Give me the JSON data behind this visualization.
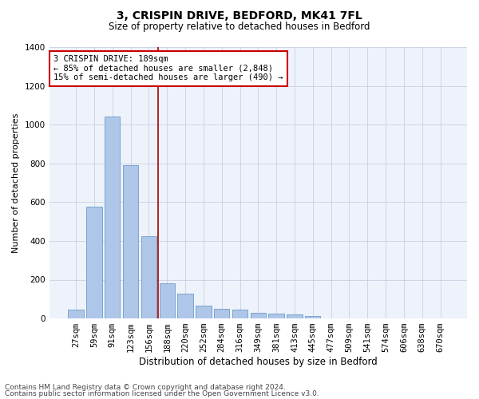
{
  "title1": "3, CRISPIN DRIVE, BEDFORD, MK41 7FL",
  "title2": "Size of property relative to detached houses in Bedford",
  "xlabel": "Distribution of detached houses by size in Bedford",
  "ylabel": "Number of detached properties",
  "categories": [
    "27sqm",
    "59sqm",
    "91sqm",
    "123sqm",
    "156sqm",
    "188sqm",
    "220sqm",
    "252sqm",
    "284sqm",
    "316sqm",
    "349sqm",
    "381sqm",
    "413sqm",
    "445sqm",
    "477sqm",
    "509sqm",
    "541sqm",
    "574sqm",
    "606sqm",
    "638sqm",
    "670sqm"
  ],
  "values": [
    45,
    575,
    1040,
    790,
    425,
    180,
    130,
    65,
    50,
    45,
    30,
    27,
    20,
    13,
    0,
    0,
    0,
    0,
    0,
    0,
    0
  ],
  "bar_color": "#aec6e8",
  "bar_edge_color": "#5a8fc0",
  "highlight_bar_idx": 5,
  "highlight_line_color": "#aa0000",
  "annotation_text": "3 CRISPIN DRIVE: 189sqm\n← 85% of detached houses are smaller (2,848)\n15% of semi-detached houses are larger (490) →",
  "annotation_box_color": "#cc0000",
  "ylim": [
    0,
    1400
  ],
  "yticks": [
    0,
    200,
    400,
    600,
    800,
    1000,
    1200,
    1400
  ],
  "grid_color": "#c8d0e0",
  "background_color": "#eef2fb",
  "footer1": "Contains HM Land Registry data © Crown copyright and database right 2024.",
  "footer2": "Contains public sector information licensed under the Open Government Licence v3.0.",
  "title1_fontsize": 10,
  "title2_fontsize": 8.5,
  "xlabel_fontsize": 8.5,
  "ylabel_fontsize": 8,
  "tick_fontsize": 7.5,
  "annotation_fontsize": 7.5,
  "footer_fontsize": 6.5
}
